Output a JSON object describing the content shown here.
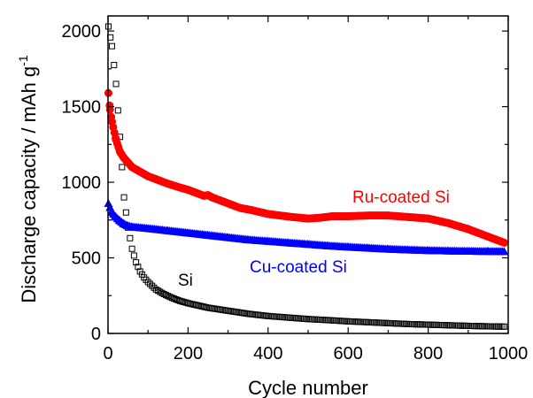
{
  "chart_data": {
    "type": "scatter",
    "xlabel": "Cycle number",
    "ylabel": "Discharge capacity / mAh g",
    "ylabel_superscript": "-1",
    "xlim": [
      0,
      1000
    ],
    "ylim": [
      0,
      2100
    ],
    "x_ticks": [
      "0",
      "200",
      "400",
      "600",
      "800",
      "1000"
    ],
    "y_ticks": [
      "0",
      "500",
      "1000",
      "1500",
      "2000"
    ],
    "grid": false,
    "series": [
      {
        "name": "Si",
        "color": "#000000",
        "marker": "open-square",
        "points": [
          [
            1,
            2030
          ],
          [
            10,
            1900
          ],
          [
            20,
            1650
          ],
          [
            30,
            1300
          ],
          [
            40,
            900
          ],
          [
            50,
            700
          ],
          [
            60,
            560
          ],
          [
            70,
            470
          ],
          [
            80,
            410
          ],
          [
            90,
            370
          ],
          [
            100,
            340
          ],
          [
            120,
            290
          ],
          [
            140,
            260
          ],
          [
            160,
            235
          ],
          [
            180,
            215
          ],
          [
            200,
            200
          ],
          [
            250,
            170
          ],
          [
            300,
            150
          ],
          [
            350,
            130
          ],
          [
            400,
            115
          ],
          [
            450,
            105
          ],
          [
            500,
            95
          ],
          [
            550,
            88
          ],
          [
            600,
            80
          ],
          [
            650,
            74
          ],
          [
            700,
            68
          ],
          [
            750,
            62
          ],
          [
            800,
            58
          ],
          [
            850,
            54
          ],
          [
            900,
            50
          ],
          [
            950,
            47
          ],
          [
            990,
            45
          ]
        ]
      },
      {
        "name": "Cu-coated Si",
        "color": "#0000ff",
        "marker": "filled-triangle",
        "points": [
          [
            1,
            860
          ],
          [
            10,
            800
          ],
          [
            20,
            770
          ],
          [
            30,
            745
          ],
          [
            40,
            725
          ],
          [
            50,
            712
          ],
          [
            60,
            705
          ],
          [
            80,
            700
          ],
          [
            100,
            695
          ],
          [
            150,
            680
          ],
          [
            200,
            665
          ],
          [
            250,
            650
          ],
          [
            300,
            635
          ],
          [
            350,
            620
          ],
          [
            400,
            610
          ],
          [
            450,
            600
          ],
          [
            500,
            590
          ],
          [
            550,
            580
          ],
          [
            600,
            572
          ],
          [
            650,
            565
          ],
          [
            700,
            558
          ],
          [
            750,
            553
          ],
          [
            800,
            549
          ],
          [
            850,
            546
          ],
          [
            900,
            544
          ],
          [
            950,
            543
          ],
          [
            990,
            542
          ]
        ]
      },
      {
        "name": "Ru-coated Si",
        "color": "#ff0000",
        "marker": "filled-circle",
        "points": [
          [
            1,
            1590
          ],
          [
            5,
            1480
          ],
          [
            10,
            1400
          ],
          [
            20,
            1280
          ],
          [
            30,
            1200
          ],
          [
            40,
            1160
          ],
          [
            50,
            1130
          ],
          [
            60,
            1100
          ],
          [
            80,
            1070
          ],
          [
            100,
            1040
          ],
          [
            120,
            1020
          ],
          [
            150,
            990
          ],
          [
            180,
            965
          ],
          [
            200,
            950
          ],
          [
            220,
            930
          ],
          [
            240,
            910
          ],
          [
            250,
            915
          ],
          [
            260,
            900
          ],
          [
            280,
            880
          ],
          [
            300,
            860
          ],
          [
            330,
            830
          ],
          [
            360,
            815
          ],
          [
            400,
            790
          ],
          [
            430,
            780
          ],
          [
            460,
            770
          ],
          [
            500,
            760
          ],
          [
            530,
            765
          ],
          [
            560,
            775
          ],
          [
            600,
            775
          ],
          [
            650,
            780
          ],
          [
            700,
            780
          ],
          [
            750,
            770
          ],
          [
            800,
            760
          ],
          [
            850,
            730
          ],
          [
            900,
            690
          ],
          [
            950,
            640
          ],
          [
            970,
            620
          ],
          [
            990,
            600
          ]
        ]
      }
    ]
  }
}
